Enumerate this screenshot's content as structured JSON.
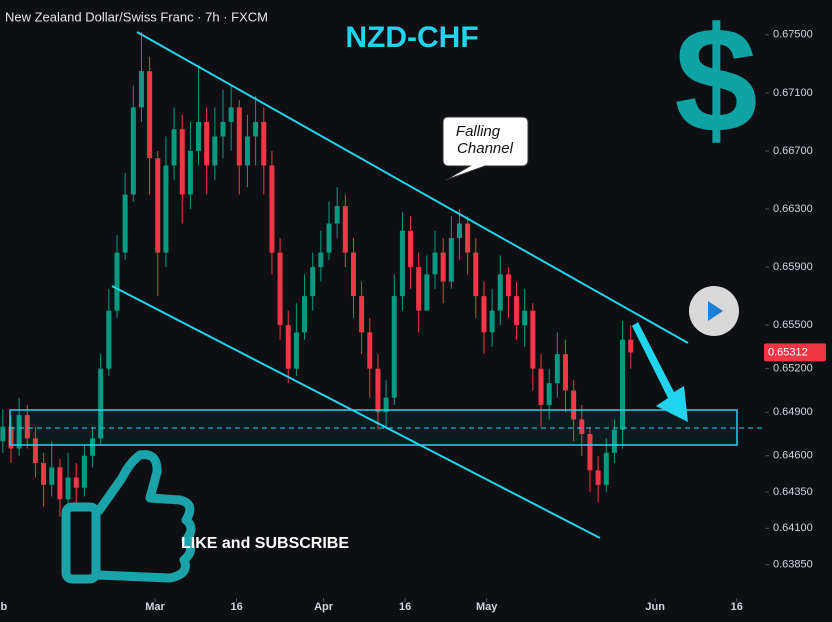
{
  "chart_data": {
    "type": "candlestick",
    "title": "New Zealand Dollar/Swiss Franc · 7h · FXCM",
    "symbol": "NZD-CHF",
    "currency_sign": "$",
    "annotation": [
      "Falling",
      "Channel"
    ],
    "call_to_action": "LIKE and SUBSCRIBE",
    "last_price": 0.65312,
    "up_color": "#089981",
    "down_color": "#f23645",
    "xlim": [
      0.48,
      141.2
    ],
    "xticks": [
      {
        "value": 0,
        "label": "Feb"
      },
      {
        "value": 29,
        "label": "Mar"
      },
      {
        "value": 44,
        "label": "16"
      },
      {
        "value": 60,
        "label": "Apr"
      },
      {
        "value": 75,
        "label": "16"
      },
      {
        "value": 90,
        "label": "May"
      },
      {
        "value": 121,
        "label": "Jun"
      },
      {
        "value": 136,
        "label": "16"
      }
    ],
    "ylim": [
      0.6362,
      0.6774
    ],
    "yticks": [
      {
        "value": 0.675,
        "label": "0.67500"
      },
      {
        "value": 0.671,
        "label": "0.67100"
      },
      {
        "value": 0.667,
        "label": "0.66700"
      },
      {
        "value": 0.663,
        "label": "0.66300"
      },
      {
        "value": 0.659,
        "label": "0.65900"
      },
      {
        "value": 0.655,
        "label": "0.65500"
      },
      {
        "value": 0.652,
        "label": "0.65200"
      },
      {
        "value": 0.649,
        "label": "0.64900"
      },
      {
        "value": 0.646,
        "label": "0.64600"
      },
      {
        "value": 0.6435,
        "label": "0.64350"
      },
      {
        "value": 0.641,
        "label": "0.64100"
      },
      {
        "value": 0.6385,
        "label": "0.63850"
      }
    ],
    "x": [
      1,
      2.5,
      4,
      5.5,
      7,
      8.5,
      10,
      11.5,
      13,
      14.5,
      16,
      17.5,
      19,
      20.5,
      22,
      23.5,
      25,
      26.5,
      28,
      29.5,
      31,
      32.5,
      34,
      35.5,
      37,
      38.5,
      40,
      41.5,
      43,
      44.5,
      46,
      47.5,
      49,
      50.5,
      52,
      53.5,
      55,
      56.5,
      58,
      59.5,
      61,
      62.5,
      64,
      65.5,
      67,
      68.5,
      70,
      71.5,
      73,
      74.5,
      76,
      77.5,
      79,
      80.5,
      82,
      83.5,
      85,
      86.5,
      88,
      89.5,
      91,
      92.5,
      94,
      95.5,
      97,
      98.5,
      100,
      101.5,
      103,
      104.5,
      106,
      107.5,
      109,
      110.5,
      112,
      113.5,
      115,
      116.5
    ],
    "open": [
      0.647,
      0.648,
      0.6465,
      0.6488,
      0.6472,
      0.6455,
      0.644,
      0.6452,
      0.643,
      0.6445,
      0.6438,
      0.646,
      0.6472,
      0.652,
      0.656,
      0.66,
      0.664,
      0.67,
      0.6725,
      0.6665,
      0.66,
      0.666,
      0.6685,
      0.664,
      0.667,
      0.669,
      0.666,
      0.668,
      0.669,
      0.67,
      0.666,
      0.668,
      0.669,
      0.666,
      0.66,
      0.655,
      0.652,
      0.6545,
      0.657,
      0.659,
      0.66,
      0.662,
      0.6632,
      0.66,
      0.657,
      0.6545,
      0.652,
      0.649,
      0.65,
      0.657,
      0.6615,
      0.659,
      0.656,
      0.6585,
      0.66,
      0.658,
      0.661,
      0.662,
      0.66,
      0.657,
      0.6545,
      0.656,
      0.6585,
      0.657,
      0.655,
      0.656,
      0.652,
      0.6495,
      0.651,
      0.653,
      0.6505,
      0.6485,
      0.6475,
      0.645,
      0.644,
      0.6462,
      0.6478,
      0.654
    ],
    "high": [
      0.6492,
      0.6488,
      0.65,
      0.6495,
      0.648,
      0.6462,
      0.647,
      0.6458,
      0.6462,
      0.6455,
      0.6468,
      0.648,
      0.653,
      0.6575,
      0.6612,
      0.6655,
      0.6715,
      0.6752,
      0.6735,
      0.667,
      0.668,
      0.67,
      0.6695,
      0.669,
      0.6728,
      0.67,
      0.67,
      0.6712,
      0.6715,
      0.6705,
      0.6695,
      0.6708,
      0.67,
      0.667,
      0.661,
      0.656,
      0.6565,
      0.6585,
      0.66,
      0.6615,
      0.6635,
      0.6645,
      0.664,
      0.661,
      0.658,
      0.6555,
      0.653,
      0.6512,
      0.6585,
      0.6628,
      0.6625,
      0.66,
      0.6598,
      0.6615,
      0.661,
      0.6625,
      0.663,
      0.6625,
      0.661,
      0.658,
      0.6575,
      0.6598,
      0.659,
      0.658,
      0.6575,
      0.6565,
      0.653,
      0.652,
      0.6545,
      0.654,
      0.6512,
      0.6495,
      0.648,
      0.646,
      0.6472,
      0.6485,
      0.6553,
      0.655
    ],
    "low": [
      0.6462,
      0.6455,
      0.646,
      0.6465,
      0.6445,
      0.6425,
      0.6432,
      0.6418,
      0.6425,
      0.6428,
      0.6432,
      0.6452,
      0.6468,
      0.6515,
      0.6555,
      0.6595,
      0.6635,
      0.669,
      0.664,
      0.657,
      0.659,
      0.665,
      0.662,
      0.663,
      0.666,
      0.664,
      0.665,
      0.6665,
      0.667,
      0.664,
      0.6645,
      0.666,
      0.664,
      0.6585,
      0.654,
      0.651,
      0.6515,
      0.654,
      0.656,
      0.658,
      0.6595,
      0.661,
      0.659,
      0.6555,
      0.653,
      0.65,
      0.6478,
      0.648,
      0.6495,
      0.656,
      0.6575,
      0.6545,
      0.656,
      0.6575,
      0.6565,
      0.6575,
      0.6595,
      0.6585,
      0.6555,
      0.653,
      0.6535,
      0.655,
      0.6555,
      0.654,
      0.6535,
      0.6505,
      0.648,
      0.6485,
      0.65,
      0.649,
      0.647,
      0.646,
      0.6435,
      0.6428,
      0.6435,
      0.6455,
      0.6465,
      0.652
    ],
    "close": [
      0.648,
      0.6465,
      0.6488,
      0.6472,
      0.6455,
      0.644,
      0.6452,
      0.643,
      0.6445,
      0.6438,
      0.646,
      0.6472,
      0.652,
      0.656,
      0.66,
      0.664,
      0.67,
      0.6725,
      0.6665,
      0.66,
      0.666,
      0.6685,
      0.664,
      0.667,
      0.669,
      0.666,
      0.668,
      0.669,
      0.67,
      0.666,
      0.668,
      0.669,
      0.666,
      0.66,
      0.655,
      0.652,
      0.6545,
      0.657,
      0.659,
      0.66,
      0.662,
      0.6632,
      0.66,
      0.657,
      0.6545,
      0.652,
      0.649,
      0.65,
      0.657,
      0.6615,
      0.659,
      0.656,
      0.6585,
      0.66,
      0.658,
      0.661,
      0.662,
      0.66,
      0.657,
      0.6545,
      0.656,
      0.6585,
      0.657,
      0.655,
      0.656,
      0.652,
      0.6495,
      0.651,
      0.653,
      0.6505,
      0.6485,
      0.6475,
      0.645,
      0.644,
      0.6462,
      0.6478,
      0.654,
      0.65312
    ]
  }
}
